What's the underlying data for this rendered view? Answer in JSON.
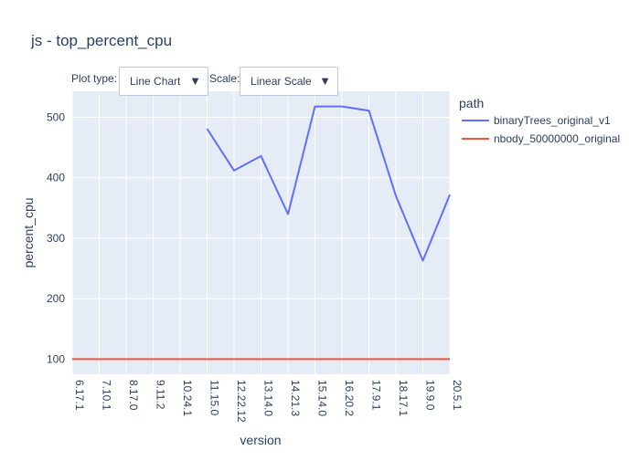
{
  "chart_data": {
    "type": "line",
    "title": "js - top_percent_cpu",
    "xlabel": "version",
    "ylabel": "percent_cpu",
    "legend_title": "path",
    "legend_position": "top-right",
    "grid": true,
    "categories": [
      "6.17.1",
      "7.10.1",
      "8.17.0",
      "9.11.2",
      "10.24.1",
      "11.15.0",
      "12.22.12",
      "13.14.0",
      "14.21.3",
      "15.14.0",
      "16.20.2",
      "17.9.1",
      "18.17.1",
      "19.9.0",
      "20.5.1"
    ],
    "x_tick_labels": [
      "6.17.1",
      "7.10.1",
      "8.17.0",
      "9.11.2",
      "10.24.1",
      "11.15.0",
      "12.22.12",
      "13.14.0",
      "14.21.3",
      "15.14.0",
      "16.20.2",
      "17.9.1",
      "18.17.1",
      "19.9.0",
      "20.5.1"
    ],
    "y_ticks": [
      100,
      200,
      300,
      400,
      500
    ],
    "ylim": [
      75,
      543
    ],
    "series": [
      {
        "name": "binaryTrees_original_v1",
        "color": "#636efa",
        "values": [
          null,
          null,
          null,
          null,
          null,
          481,
          412,
          436,
          340,
          518,
          518,
          511,
          370,
          263,
          372
        ]
      },
      {
        "name": "nbody_50000000_original",
        "color": "#ef553b",
        "values": [
          100,
          100,
          100,
          100,
          100,
          100,
          100,
          100,
          100,
          100,
          100,
          100,
          100,
          100,
          100
        ]
      }
    ]
  },
  "controls": {
    "plot_type_label": "Plot type:",
    "plot_type_value": "Line Chart",
    "scale_label": "Scale:",
    "scale_value": "Linear Scale",
    "arrow_icon": "▼"
  },
  "colors": {
    "plot_bg": "#e5ecf6",
    "grid": "#ffffff",
    "text": "#2a3f5f"
  }
}
